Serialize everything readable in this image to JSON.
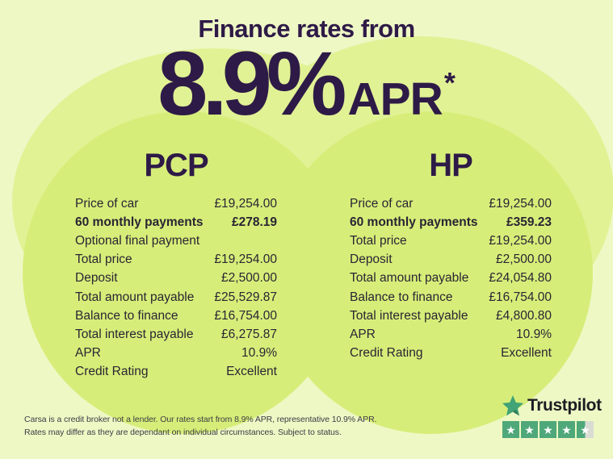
{
  "header": {
    "title": "Finance rates from",
    "rate": "8.9%",
    "rate_suffix": "APR",
    "rate_asterisk": "*"
  },
  "columns": [
    {
      "heading": "PCP",
      "rows": [
        {
          "label": "Price of car",
          "value": "£19,254.00",
          "bold": false
        },
        {
          "label": "60 monthly payments",
          "value": "£278.19",
          "bold": true
        },
        {
          "label": "Optional final payment",
          "value": "",
          "bold": false
        },
        {
          "label": "Total price",
          "value": "£19,254.00",
          "bold": false
        },
        {
          "label": "Deposit",
          "value": "£2,500.00",
          "bold": false
        },
        {
          "label": "Total amount payable",
          "value": "£25,529.87",
          "bold": false
        },
        {
          "label": "Balance to finance",
          "value": "£16,754.00",
          "bold": false
        },
        {
          "label": "Total interest payable",
          "value": "£6,275.87",
          "bold": false
        },
        {
          "label": "APR",
          "value": "10.9%",
          "bold": false
        },
        {
          "label": "Credit Rating",
          "value": "Excellent",
          "bold": false
        }
      ]
    },
    {
      "heading": "HP",
      "rows": [
        {
          "label": "Price of car",
          "value": "£19,254.00",
          "bold": false
        },
        {
          "label": "60 monthly payments",
          "value": "£359.23",
          "bold": true
        },
        {
          "label": "Total price",
          "value": "£19,254.00",
          "bold": false
        },
        {
          "label": "Deposit",
          "value": "£2,500.00",
          "bold": false
        },
        {
          "label": "Total amount payable",
          "value": "£24,054.80",
          "bold": false
        },
        {
          "label": "Balance to finance",
          "value": "£16,754.00",
          "bold": false
        },
        {
          "label": "Total interest payable",
          "value": "£4,800.80",
          "bold": false
        },
        {
          "label": "APR",
          "value": "10.9%",
          "bold": false
        },
        {
          "label": "Credit Rating",
          "value": "Excellent",
          "bold": false
        }
      ]
    }
  ],
  "disclaimer": {
    "line1": "Carsa is a credit broker not a lender. Our rates start from 8.9% APR, representative 10.9% APR.",
    "line2": "Rates may differ as they are dependant on individual circumstances. Subject to status."
  },
  "trustpilot": {
    "brand": "Trustpilot",
    "rating_boxes": [
      "full",
      "full",
      "full",
      "full",
      "half"
    ],
    "star_glyph": "★"
  },
  "icons": {
    "trustpilot_logo_star": "green five-point star",
    "rating_star_glyph": "★"
  },
  "colors": {
    "background": "#eef8c5",
    "hill_green": "#e1f295",
    "circle_lime": "#d6ee79",
    "heading_purple": "#2e1a47",
    "row_text": "#2a2433",
    "trustpilot_green": "#4fa87a",
    "rating_empty": "#d9dcd3"
  }
}
